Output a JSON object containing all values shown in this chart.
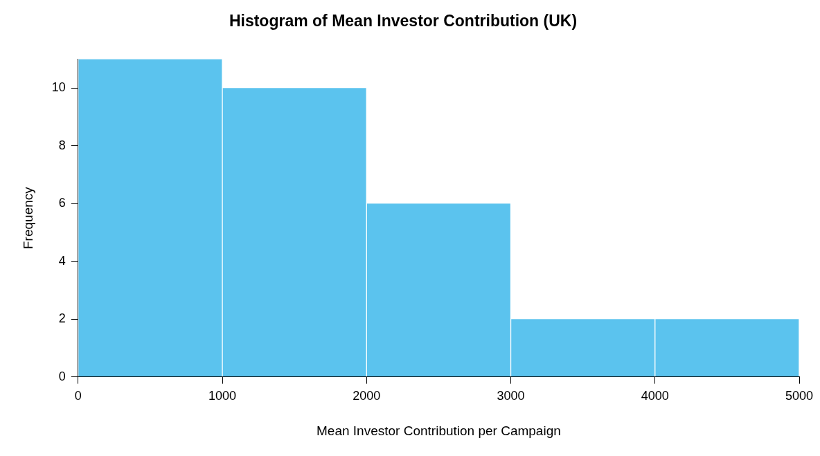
{
  "chart_data": {
    "type": "histogram",
    "title": "Histogram of Mean Investor Contribution (UK)",
    "xlabel": "Mean Investor Contribution per Campaign",
    "ylabel": "Frequency",
    "bins": [
      0,
      1000,
      2000,
      3000,
      4000,
      5000
    ],
    "values": [
      11,
      10,
      6,
      2,
      2
    ],
    "color": "#5bc3ee",
    "xlim": [
      0,
      5000
    ],
    "xticks": [
      0,
      1000,
      2000,
      3000,
      4000,
      5000
    ],
    "ylim": [
      0,
      11
    ],
    "yticks": [
      0,
      2,
      4,
      6,
      8,
      10
    ]
  }
}
